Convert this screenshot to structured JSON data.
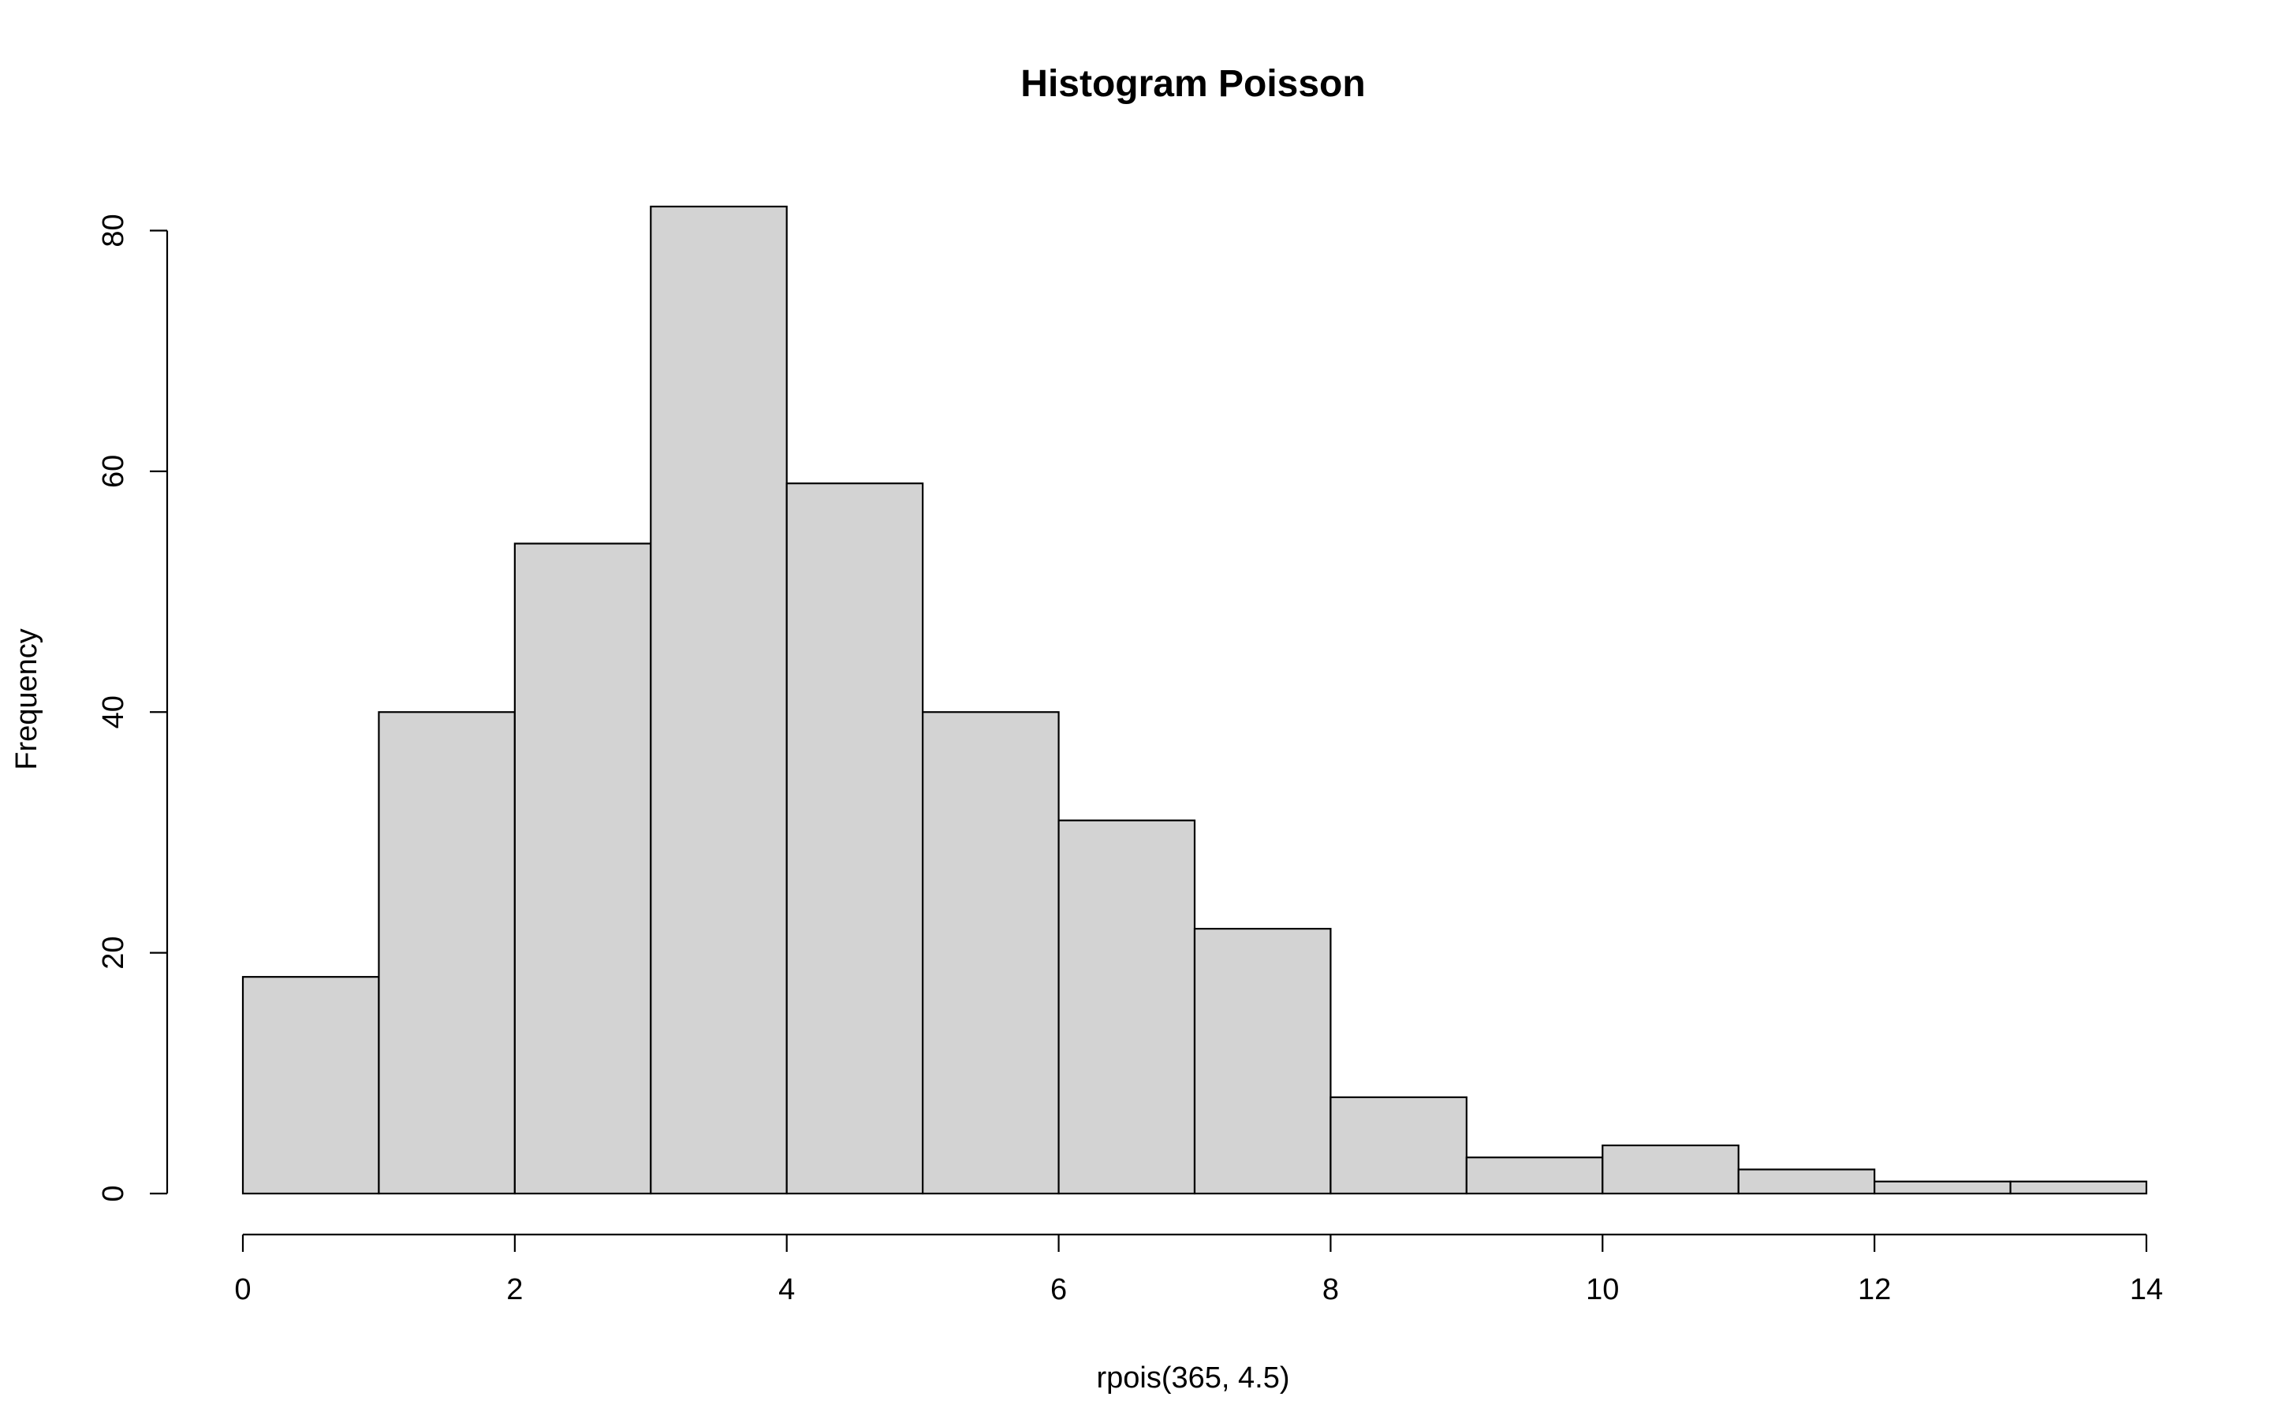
{
  "chart_data": {
    "type": "bar",
    "title": "Histogram Poisson",
    "xlabel": "rpois(365, 4.5)",
    "ylabel": "Frequency",
    "bins": [
      {
        "start": 0,
        "end": 1,
        "value": 18
      },
      {
        "start": 1,
        "end": 2,
        "value": 40
      },
      {
        "start": 2,
        "end": 3,
        "value": 54
      },
      {
        "start": 3,
        "end": 4,
        "value": 82
      },
      {
        "start": 4,
        "end": 5,
        "value": 59
      },
      {
        "start": 5,
        "end": 6,
        "value": 40
      },
      {
        "start": 6,
        "end": 7,
        "value": 31
      },
      {
        "start": 7,
        "end": 8,
        "value": 22
      },
      {
        "start": 8,
        "end": 9,
        "value": 8
      },
      {
        "start": 9,
        "end": 10,
        "value": 3
      },
      {
        "start": 10,
        "end": 11,
        "value": 4
      },
      {
        "start": 11,
        "end": 12,
        "value": 2
      },
      {
        "start": 12,
        "end": 13,
        "value": 1
      },
      {
        "start": 13,
        "end": 14,
        "value": 1
      }
    ],
    "xlim": [
      0,
      14
    ],
    "ylim": [
      0,
      82
    ],
    "xticks": [
      0,
      2,
      4,
      6,
      8,
      10,
      12,
      14
    ],
    "yticks": [
      0,
      20,
      40,
      60,
      80
    ],
    "grid": false,
    "bar_fill": "#d3d3d3",
    "bar_stroke": "#000000"
  }
}
